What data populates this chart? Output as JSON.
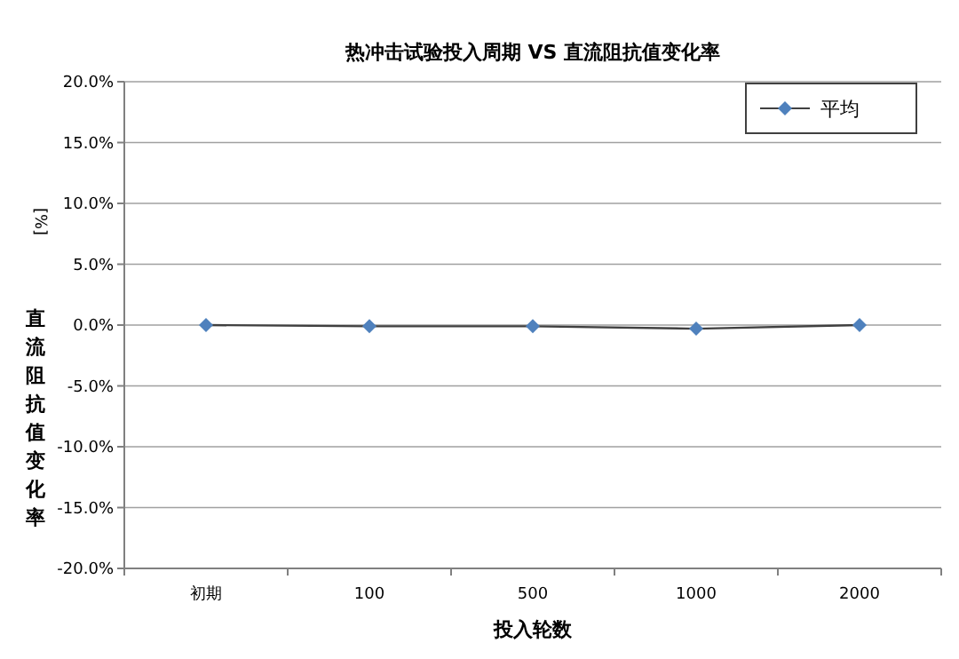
{
  "chart_data": {
    "type": "line",
    "title": "热冲击试验投入周期 VS 直流阻抗值变化率",
    "xlabel": "投入轮数",
    "ylabel": "直流阻抗值变化率",
    "annotations": [
      "[%]"
    ],
    "categories": [
      "初期",
      "100",
      "500",
      "1000",
      "2000"
    ],
    "series": [
      {
        "name": "平均",
        "color": "#4f81bd",
        "values": [
          0,
          -0.1,
          -0.1,
          -0.3,
          0
        ]
      }
    ],
    "ylim": [
      -20,
      20
    ],
    "yticks": [
      {
        "value": -20,
        "label": "-20.0%"
      },
      {
        "value": -15,
        "label": "-15.0%"
      },
      {
        "value": -10,
        "label": "-10.0%"
      },
      {
        "value": -5,
        "label": "-5.0%"
      },
      {
        "value": 0,
        "label": "0.0%"
      },
      {
        "value": 5,
        "label": "5.0%"
      },
      {
        "value": 10,
        "label": "10.0%"
      },
      {
        "value": 15,
        "label": "15.0%"
      },
      {
        "value": 20,
        "label": "20.0%"
      }
    ],
    "grid": "y",
    "legend": "top right",
    "marker": "diamond",
    "line_style": "solid"
  }
}
